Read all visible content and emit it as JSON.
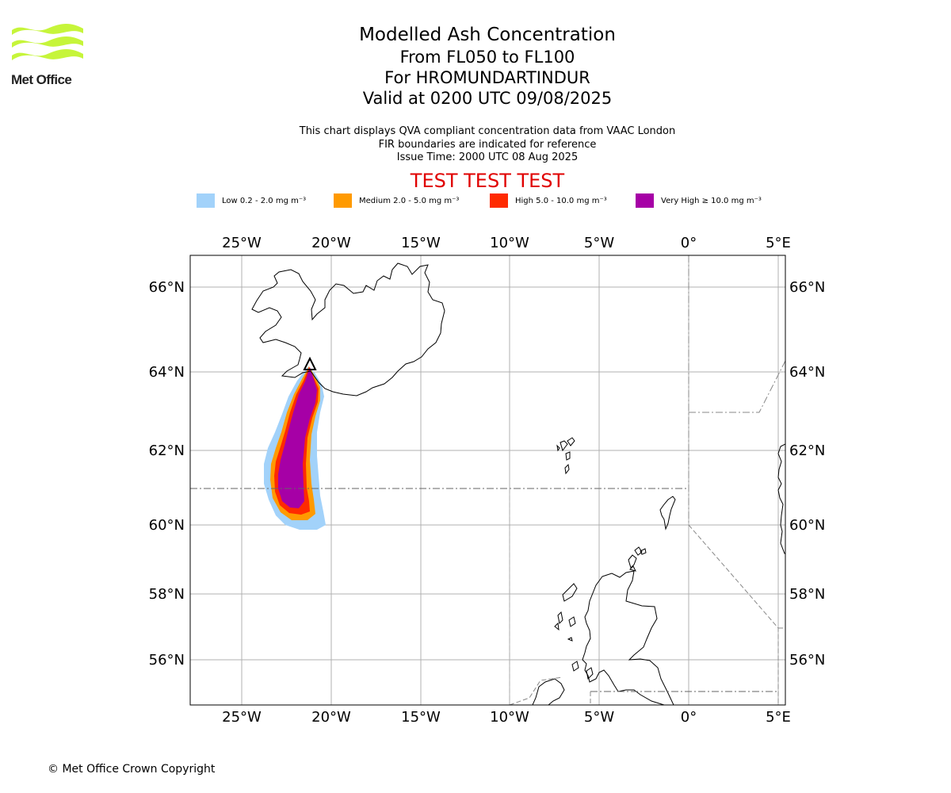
{
  "header": {
    "logo_text": "Met Office",
    "logo_color": "#c6f53a",
    "title": "Modelled Ash Concentration",
    "levels": "From FL050 to FL100",
    "volcano": "For HROMUNDARTINDUR",
    "valid": "Valid at 0200 UTC 09/08/2025",
    "info_line1": "This chart displays QVA compliant concentration data from VAAC London",
    "info_line2": "FIR boundaries are indicated for reference",
    "info_line3": "Issue Time: 2000 UTC 08 Aug 2025",
    "test_banner": "TEST TEST TEST"
  },
  "legend": [
    {
      "label": "Low 0.2 - 2.0 mg m⁻³",
      "color": "#a2d2fa"
    },
    {
      "label": "Medium 2.0 - 5.0 mg m⁻³",
      "color": "#ff9a00"
    },
    {
      "label": "High 5.0 - 10.0 mg m⁻³",
      "color": "#ff2a00"
    },
    {
      "label": "Very High ≥ 10.0 mg m⁻³",
      "color": "#a600a6"
    }
  ],
  "map": {
    "lon_ticks": [
      "25°W",
      "20°W",
      "15°W",
      "10°W",
      "5°W",
      "0°",
      "5°E"
    ],
    "lat_ticks": [
      "66°N",
      "64°N",
      "62°N",
      "60°N",
      "58°N",
      "56°N"
    ],
    "volcano_marker": "triangle-icon"
  },
  "footer": {
    "copyright": "© Met Office Crown Copyright"
  }
}
